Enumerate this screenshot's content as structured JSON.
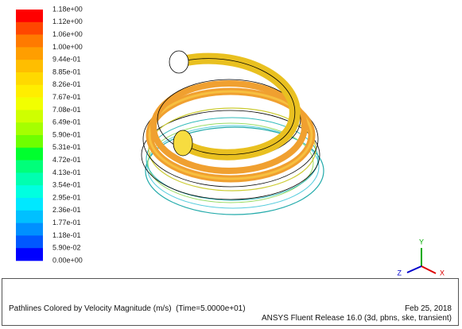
{
  "colorbar": {
    "labels": [
      "1.18e+00",
      "1.12e+00",
      "1.06e+00",
      "1.00e+00",
      "9.44e-01",
      "8.85e-01",
      "8.26e-01",
      "7.67e-01",
      "7.08e-01",
      "6.49e-01",
      "5.90e-01",
      "5.31e-01",
      "4.72e-01",
      "4.13e-01",
      "3.54e-01",
      "2.95e-01",
      "2.36e-01",
      "1.77e-01",
      "1.18e-01",
      "5.90e-02",
      "0.00e+00"
    ],
    "colors": [
      "#ff0000",
      "#ff4700",
      "#ff7a00",
      "#ff9e00",
      "#ffbe00",
      "#ffd900",
      "#ffee00",
      "#f2ff00",
      "#cfff00",
      "#a5ff00",
      "#6eff00",
      "#00ff2e",
      "#00ff7a",
      "#00ffb0",
      "#00ffe0",
      "#00e8ff",
      "#00c0ff",
      "#0090ff",
      "#0058ff",
      "#0000ff"
    ]
  },
  "triad": {
    "x": "X",
    "y": "Y",
    "z": "Z"
  },
  "footer": {
    "caption": "Pathlines Colored by Velocity Magnitude (m/s)  (Time=5.0000e+01)",
    "date": "Feb 25, 2018",
    "release": "ANSYS Fluent Release 16.0 (3d, pbns, ske, transient)"
  }
}
